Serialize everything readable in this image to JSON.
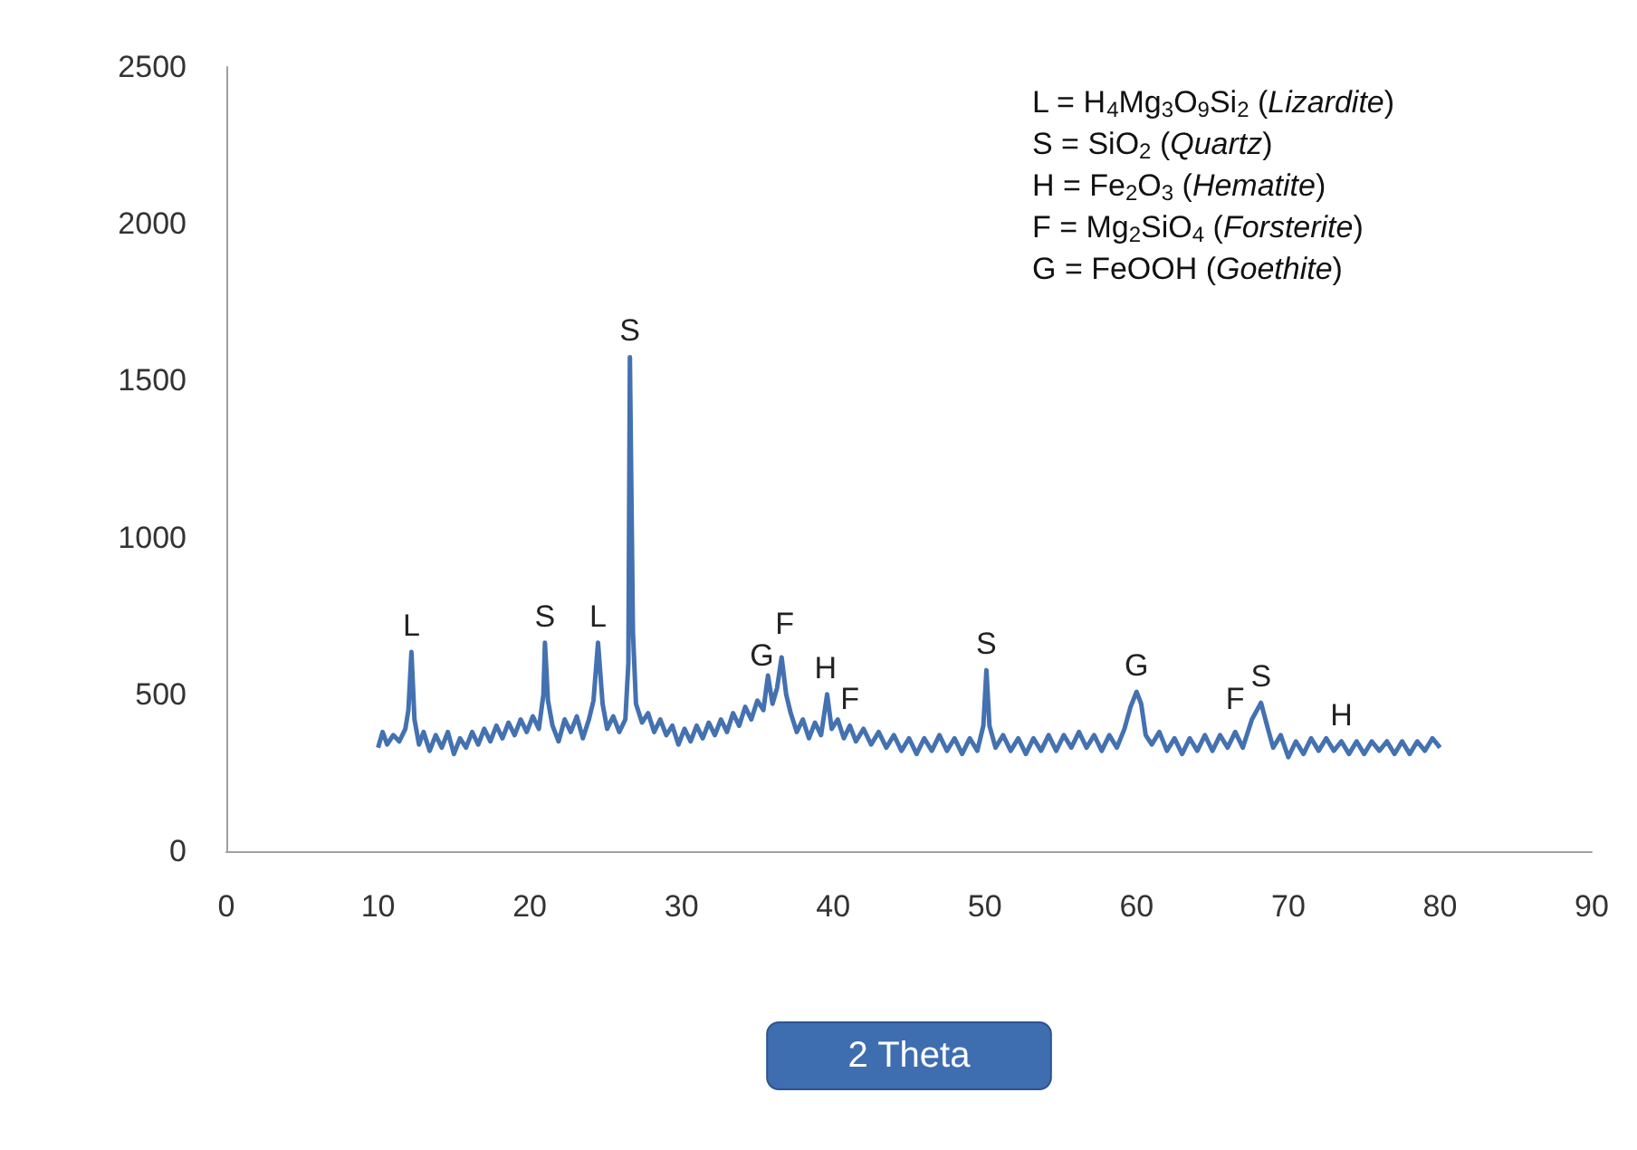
{
  "chart_data": {
    "type": "line",
    "xlabel": "2 Theta",
    "xlim": [
      0,
      90
    ],
    "xticks": [
      0,
      10,
      20,
      30,
      40,
      50,
      60,
      70,
      80,
      90
    ],
    "ylim": [
      0,
      2500
    ],
    "yticks": [
      0,
      500,
      1000,
      1500,
      2000,
      2500
    ],
    "grid": false,
    "marker": "none",
    "line_style": "solid",
    "series": [
      {
        "color": "#4471b0",
        "x": [
          10,
          10.3,
          10.6,
          11,
          11.4,
          11.8,
          12.0,
          12.2,
          12.4,
          12.7,
          13.0,
          13.4,
          13.8,
          14.2,
          14.6,
          15.0,
          15.4,
          15.8,
          16.2,
          16.6,
          17.0,
          17.4,
          17.8,
          18.2,
          18.6,
          19.0,
          19.4,
          19.8,
          20.2,
          20.6,
          20.9,
          21.0,
          21.2,
          21.5,
          21.9,
          22.3,
          22.7,
          23.1,
          23.5,
          23.9,
          24.2,
          24.5,
          24.8,
          25.1,
          25.5,
          25.9,
          26.3,
          26.5,
          26.6,
          26.8,
          27.0,
          27.4,
          27.8,
          28.2,
          28.6,
          29.0,
          29.4,
          29.8,
          30.2,
          30.6,
          31.0,
          31.4,
          31.8,
          32.2,
          32.6,
          33.0,
          33.4,
          33.8,
          34.2,
          34.6,
          35.0,
          35.4,
          35.7,
          36.0,
          36.3,
          36.6,
          36.9,
          37.2,
          37.6,
          38.0,
          38.4,
          38.8,
          39.2,
          39.6,
          39.9,
          40.3,
          40.7,
          41.1,
          41.5,
          42,
          42.5,
          43,
          43.5,
          44,
          44.5,
          45,
          45.5,
          46,
          46.5,
          47,
          47.5,
          48,
          48.5,
          49,
          49.5,
          49.9,
          50.1,
          50.3,
          50.7,
          51.2,
          51.7,
          52.2,
          52.7,
          53.2,
          53.7,
          54.2,
          54.7,
          55.2,
          55.7,
          56.2,
          56.7,
          57.2,
          57.7,
          58.2,
          58.7,
          59.2,
          59.6,
          60.0,
          60.3,
          60.6,
          61.0,
          61.5,
          62,
          62.5,
          63,
          63.5,
          64,
          64.5,
          65,
          65.5,
          66,
          66.5,
          67,
          67.6,
          68.2,
          68.6,
          69,
          69.5,
          70,
          70.5,
          71,
          71.5,
          72,
          72.5,
          73,
          73.5,
          74,
          74.5,
          75,
          75.5,
          76,
          76.5,
          77,
          77.5,
          78,
          78.5,
          79,
          79.5,
          80
        ],
        "values": [
          330,
          380,
          340,
          370,
          350,
          390,
          450,
          635,
          420,
          340,
          380,
          320,
          370,
          330,
          380,
          310,
          360,
          330,
          380,
          340,
          390,
          350,
          400,
          360,
          410,
          370,
          420,
          380,
          430,
          390,
          500,
          665,
          480,
          400,
          350,
          420,
          380,
          430,
          360,
          420,
          480,
          665,
          470,
          390,
          430,
          380,
          420,
          600,
          1575,
          700,
          470,
          410,
          440,
          380,
          420,
          370,
          400,
          340,
          390,
          350,
          400,
          360,
          410,
          370,
          420,
          380,
          440,
          400,
          460,
          420,
          480,
          450,
          560,
          470,
          520,
          618,
          500,
          440,
          380,
          420,
          360,
          410,
          370,
          500,
          390,
          420,
          360,
          400,
          350,
          390,
          340,
          380,
          330,
          370,
          320,
          360,
          310,
          360,
          320,
          370,
          320,
          360,
          310,
          360,
          320,
          400,
          577,
          400,
          330,
          370,
          320,
          360,
          310,
          360,
          320,
          370,
          320,
          370,
          330,
          380,
          330,
          370,
          320,
          370,
          330,
          390,
          460,
          508,
          470,
          370,
          340,
          380,
          320,
          360,
          310,
          360,
          320,
          370,
          320,
          370,
          330,
          380,
          330,
          420,
          473,
          400,
          330,
          370,
          300,
          350,
          310,
          360,
          320,
          360,
          320,
          350,
          310,
          350,
          310,
          350,
          320,
          350,
          310,
          350,
          310,
          350,
          320,
          360,
          330
        ]
      }
    ],
    "annotations": [
      "L = H$_{4}$Mg$_{3}$O$_{9}$Si$_{2}$ (Lizardite)",
      "S = SiO$_{2}$ (Quartz)",
      "H = Fe$_{2}$O$_{3}$ (Hematite)",
      "F = Mg$_{2}$SiO$_{4}$ (Forsterite)",
      "G = FeOOH (Goethite)",
      {
        "text": "L",
        "x": 12.2,
        "y": 635
      },
      {
        "text": "S",
        "x": 21.0,
        "y": 665
      },
      {
        "text": "L",
        "x": 24.5,
        "y": 665
      },
      {
        "text": "S",
        "x": 26.6,
        "y": 1575
      },
      {
        "text": "G",
        "x": 35.3,
        "y": 540
      },
      {
        "text": "F",
        "x": 36.8,
        "y": 640
      },
      {
        "text": "H",
        "x": 39.5,
        "y": 500
      },
      {
        "text": "F",
        "x": 41.1,
        "y": 400
      },
      {
        "text": "S",
        "x": 50.1,
        "y": 577
      },
      {
        "text": "G",
        "x": 60.0,
        "y": 508
      },
      {
        "text": "F",
        "x": 66.5,
        "y": 400
      },
      {
        "text": "S",
        "x": 68.2,
        "y": 473
      },
      {
        "text": "H",
        "x": 73.5,
        "y": 350
      }
    ]
  }
}
